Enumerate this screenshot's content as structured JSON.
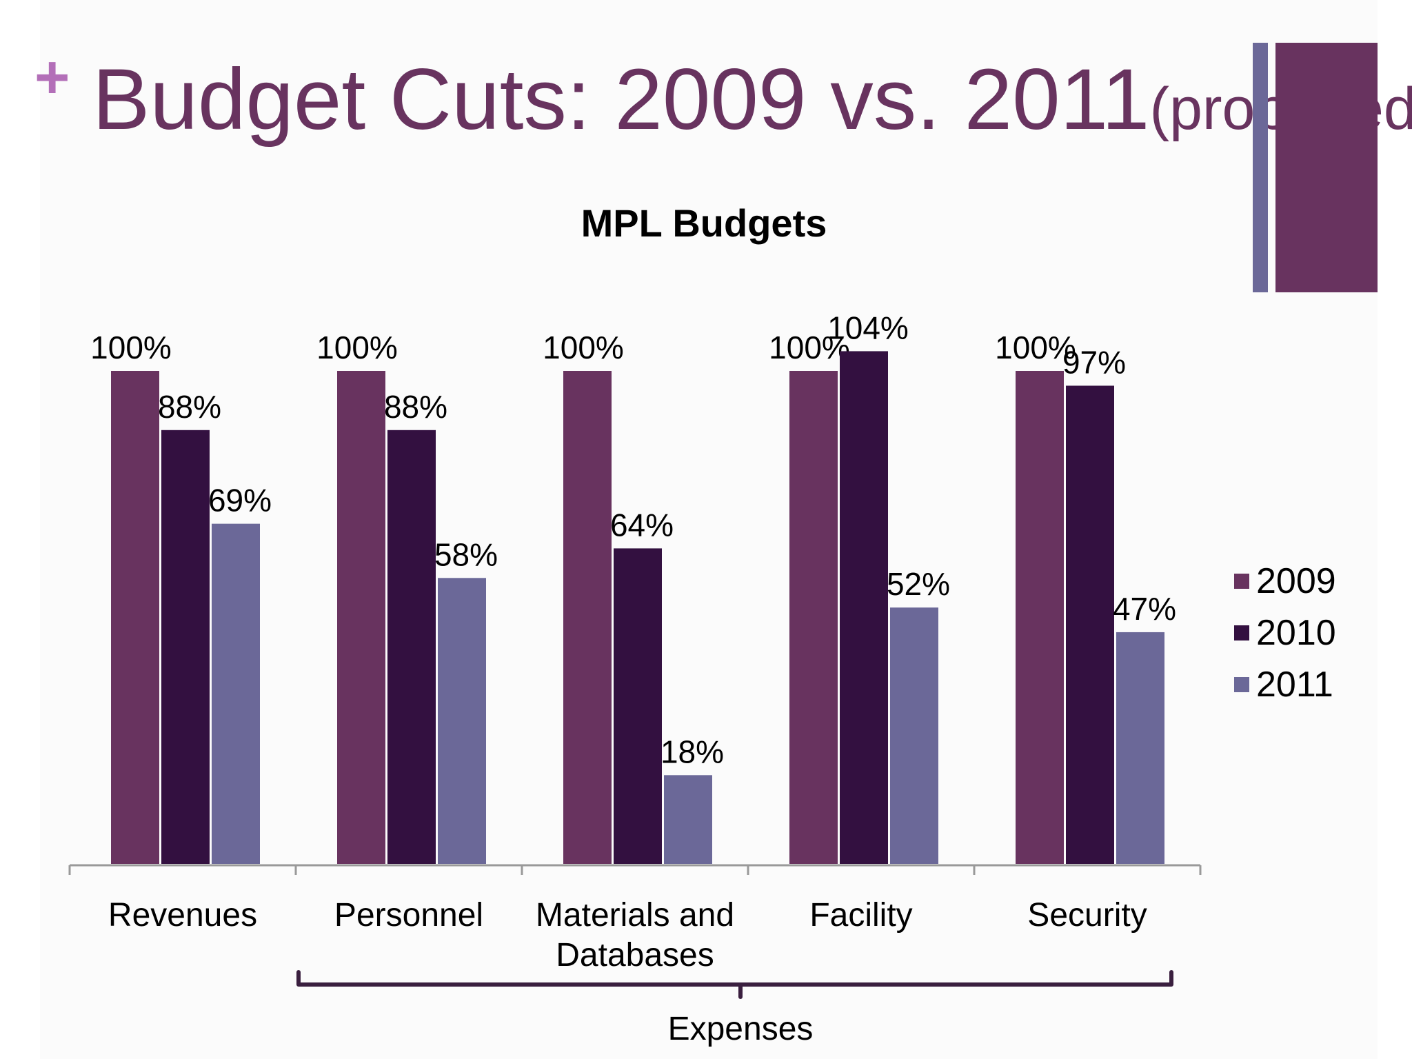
{
  "slide": {
    "title_main": "Budget Cuts: 2009 vs. 2011",
    "title_suffix": "(proposed)",
    "plus_glyph": "+"
  },
  "colors": {
    "title": "#68335f",
    "plus": "#b36fb8",
    "accent_dark": "#68335f",
    "accent_light": "#6b6898"
  },
  "chart_data": {
    "type": "bar",
    "title": "MPL Budgets",
    "categories": [
      [
        "Revenues"
      ],
      [
        "Personnel"
      ],
      [
        "Materials and",
        "Databases"
      ],
      [
        "Facility"
      ],
      [
        "Security"
      ]
    ],
    "series": [
      {
        "name": "2009",
        "color": "#68335f",
        "values": [
          100,
          100,
          100,
          100,
          100
        ],
        "labels": [
          "100%",
          "100%",
          "100%",
          "100%",
          "100%"
        ]
      },
      {
        "name": "2010",
        "color": "#331040",
        "values": [
          88,
          88,
          64,
          104,
          97
        ],
        "labels": [
          "88%",
          "88%",
          "64%",
          "104%",
          "97%"
        ]
      },
      {
        "name": "2011",
        "color": "#6b6898",
        "values": [
          69,
          58,
          18,
          52,
          47
        ],
        "labels": [
          "69%",
          "58%",
          "18%",
          "52%",
          "47%"
        ]
      }
    ],
    "unit": "%",
    "ylim": [
      0,
      100
    ],
    "gridlines": false,
    "legend_position": "right",
    "bracket": {
      "label": "Expenses",
      "from_category": 1,
      "to_category": 4
    }
  }
}
